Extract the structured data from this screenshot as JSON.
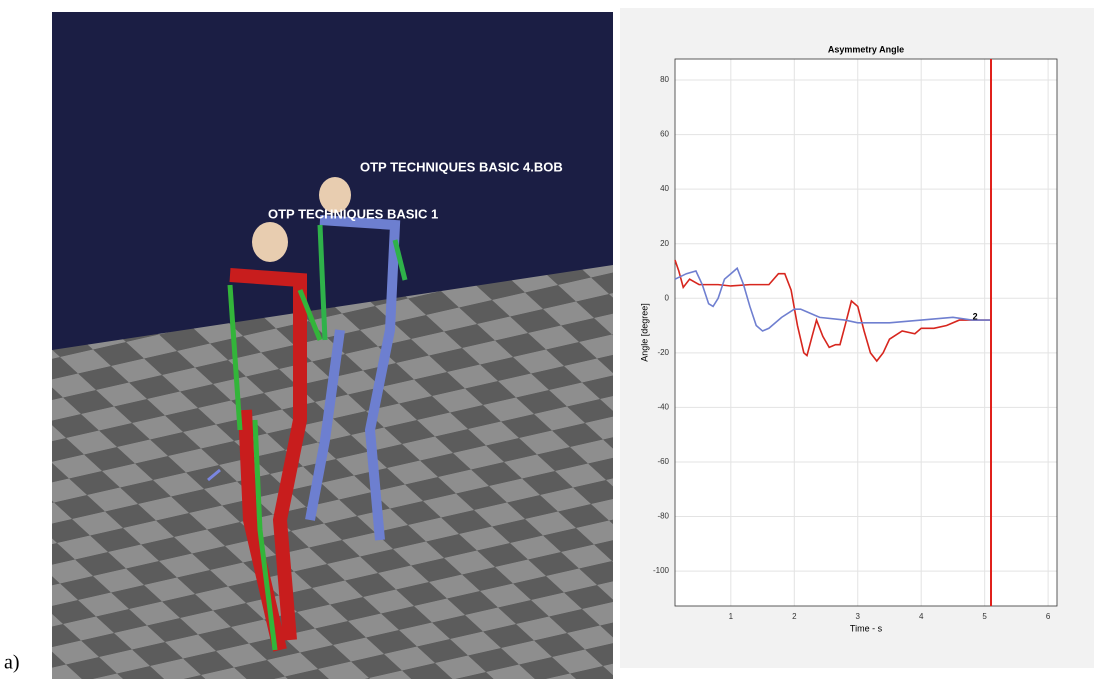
{
  "panel_label": "a)",
  "scene": {
    "labels": [
      "OTP TECHNIQUES BASIC 4.BOB",
      "OTP  TECHNIQUES BASIC 1"
    ]
  },
  "chart_data": {
    "type": "line",
    "title": "Asymmetry Angle",
    "x_label": "Time - s",
    "y_label": "Angle [degree]",
    "xlim": [
      0.12,
      6.14
    ],
    "ylim": [
      -112.8,
      87.7
    ],
    "xticks": [
      1,
      2,
      3,
      4,
      5,
      6
    ],
    "yticks": [
      -100,
      -80,
      -60,
      -40,
      -20,
      0,
      20,
      40,
      60,
      80
    ],
    "grid": true,
    "series": [
      {
        "name": "Red",
        "color": "#d7261e",
        "x": [
          0.12,
          0.18,
          0.25,
          0.35,
          0.5,
          0.8,
          1.0,
          1.3,
          1.6,
          1.75,
          1.85,
          1.95,
          2.05,
          2.15,
          2.2,
          2.28,
          2.35,
          2.45,
          2.55,
          2.65,
          2.72,
          2.8,
          2.9,
          3.0,
          3.1,
          3.2,
          3.3,
          3.4,
          3.5,
          3.7,
          3.9,
          4.0,
          4.2,
          4.4,
          4.6,
          4.8,
          5.0,
          5.1
        ],
        "values": [
          14,
          10,
          4,
          7,
          5,
          5,
          4.5,
          5,
          5,
          9,
          9,
          3,
          -10,
          -20,
          -21,
          -14,
          -8,
          -14,
          -18,
          -17,
          -17,
          -10,
          -1,
          -3,
          -12,
          -20,
          -23,
          -20,
          -15,
          -12,
          -13,
          -11,
          -11,
          -10,
          -8,
          -8,
          -8,
          -8
        ]
      },
      {
        "name": "Blue",
        "color": "#6f7fd0",
        "x": [
          0.12,
          0.3,
          0.45,
          0.55,
          0.65,
          0.72,
          0.8,
          0.9,
          1.0,
          1.1,
          1.2,
          1.3,
          1.4,
          1.5,
          1.6,
          1.8,
          2.0,
          2.1,
          2.2,
          2.4,
          2.8,
          3.0,
          3.5,
          4.0,
          4.5,
          4.8,
          5.1
        ],
        "values": [
          7,
          9,
          10,
          5,
          -2,
          -3,
          0,
          7,
          9,
          11,
          5,
          -3,
          -10,
          -12,
          -11,
          -7,
          -4,
          -4,
          -5,
          -7,
          -8,
          -9,
          -9,
          -8,
          -7,
          -8,
          -8
        ]
      }
    ],
    "vline": {
      "x": 5.1,
      "color": "#e0201b"
    },
    "annotations": [
      {
        "text": "2",
        "x": 4.85,
        "y": -7
      }
    ]
  }
}
